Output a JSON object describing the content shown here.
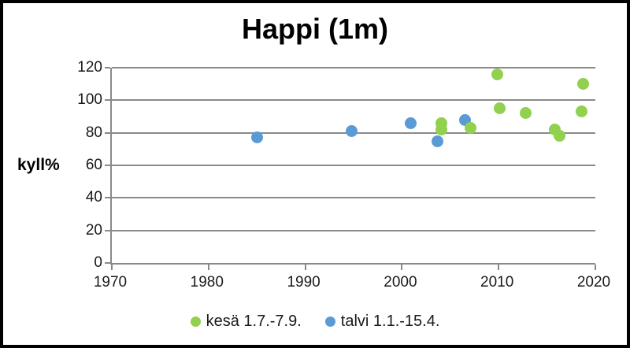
{
  "window": {
    "background": "#ffffff",
    "frame_border_color": "#000000"
  },
  "colors": {
    "gridline": "#8a8a8a",
    "axis": "#8a8a8a",
    "tick_label": "#1a1a1a",
    "title": "#000000",
    "kesa_green": "#92d050",
    "talvi_blue": "#5b9bd5"
  },
  "chart_data": {
    "type": "scatter",
    "title": "Happi (1m)",
    "xlabel": "",
    "ylabel": "kyll%",
    "xlim": [
      1970,
      2020
    ],
    "ylim": [
      0,
      120
    ],
    "x_ticks": [
      1970,
      1980,
      1990,
      2000,
      2010,
      2020
    ],
    "y_ticks": [
      0,
      20,
      40,
      60,
      80,
      100,
      120
    ],
    "grid": "horizontal-only",
    "legend_position": "bottom-center",
    "marker_diameter_px": 15,
    "series": [
      {
        "name": "kesä 1.7.-7.9.",
        "color": "#92d050",
        "points": [
          {
            "x": 2004.1,
            "y": 86
          },
          {
            "x": 2004.1,
            "y": 82
          },
          {
            "x": 2007.1,
            "y": 83
          },
          {
            "x": 2009.9,
            "y": 116
          },
          {
            "x": 2010.1,
            "y": 95
          },
          {
            "x": 2012.8,
            "y": 92
          },
          {
            "x": 2015.8,
            "y": 82
          },
          {
            "x": 2016.3,
            "y": 78
          },
          {
            "x": 2018.6,
            "y": 93
          },
          {
            "x": 2018.7,
            "y": 110
          }
        ]
      },
      {
        "name": "talvi 1.1.-15.4.",
        "color": "#5b9bd5",
        "points": [
          {
            "x": 1985.0,
            "y": 77
          },
          {
            "x": 1994.8,
            "y": 81
          },
          {
            "x": 2000.9,
            "y": 86
          },
          {
            "x": 2003.7,
            "y": 75
          },
          {
            "x": 2006.5,
            "y": 88
          }
        ]
      }
    ]
  }
}
